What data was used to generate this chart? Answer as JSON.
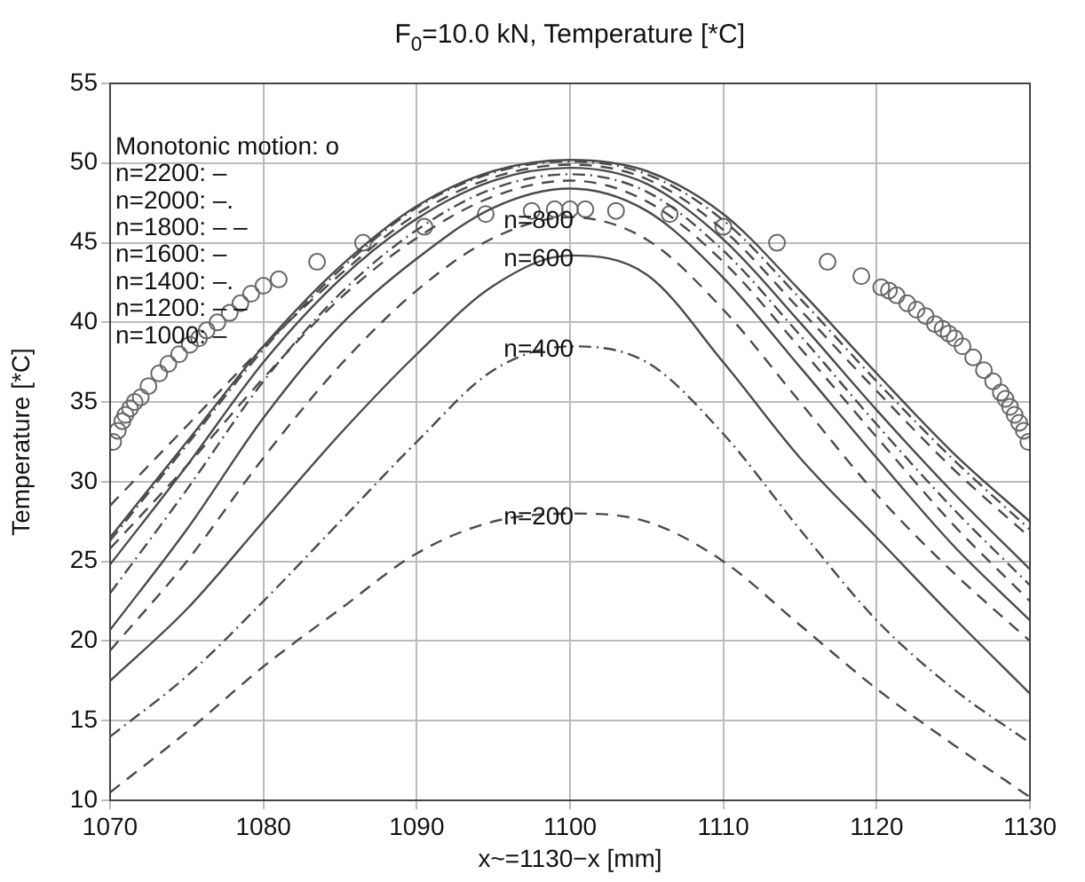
{
  "chart_data": {
    "type": "line",
    "title": "F$_{0}$=10.0 kN, Temperature [*C]",
    "xlabel": "x~=1130−x [mm]",
    "ylabel": "Temperature [*C]",
    "x": [
      1070,
      1075,
      1080,
      1085,
      1090,
      1095,
      1100,
      1105,
      1110,
      1115,
      1120,
      1125,
      1130
    ],
    "xlim": [
      1070,
      1130
    ],
    "xticks": [
      1070,
      1080,
      1090,
      1100,
      1110,
      1120,
      1130
    ],
    "ylim": [
      10,
      55
    ],
    "yticks": [
      10,
      15,
      20,
      25,
      30,
      35,
      40,
      45,
      50,
      55
    ],
    "grid": true,
    "legend": false,
    "marker": "none",
    "series": [
      {
        "color": "#4a4a4a",
        "line_style": "solid",
        "values": [
          26.5,
          32.5,
          38.5,
          43.5,
          47.3,
          49.5,
          50.2,
          49.5,
          46.8,
          42,
          36.8,
          31.8,
          27.5
        ]
      },
      {
        "color": "#4a4a4a",
        "line_style": "dashdot",
        "values": [
          26.3,
          32.3,
          38.3,
          43.3,
          47.2,
          49.4,
          50.1,
          49.3,
          46.4,
          41.5,
          36.3,
          31.4,
          27
        ]
      },
      {
        "color": "#4a4a4a",
        "line_style": "dashed",
        "values": [
          28.5,
          33.5,
          38.5,
          43,
          46.8,
          49.1,
          49.9,
          49,
          45.8,
          40.8,
          35.7,
          30.8,
          26.5
        ]
      },
      {
        "color": "#4a4a4a",
        "line_style": "solid",
        "values": [
          24.8,
          31,
          37.5,
          42.7,
          46.5,
          48.9,
          49.7,
          48.7,
          45.2,
          40,
          34.5,
          29.3,
          24.5
        ]
      },
      {
        "color": "#4a4a4a",
        "line_style": "dashdot",
        "values": [
          23,
          29.5,
          36.3,
          41.8,
          45.8,
          48.4,
          49.3,
          48.2,
          44.5,
          39.2,
          33.6,
          28.3,
          23.5
        ]
      },
      {
        "color": "#4a4a4a",
        "line_style": "dashed",
        "values": [
          25.8,
          31,
          36.5,
          41.5,
          45.3,
          47.9,
          48.9,
          47.6,
          43.8,
          38.4,
          32.8,
          27.3,
          22.5
        ]
      },
      {
        "color": "#4a4a4a",
        "line_style": "solid",
        "values": [
          20.7,
          27,
          34,
          39.8,
          44,
          47.2,
          48.4,
          47,
          42.8,
          37.2,
          31.5,
          26,
          21.3
        ]
      },
      {
        "color": "#4a4a4a",
        "line_style": "dashed",
        "values": [
          19.4,
          25,
          31.5,
          37.3,
          42,
          45.3,
          46.6,
          45.2,
          40.8,
          35,
          29.2,
          24.3,
          20
        ]
      },
      {
        "color": "#4a4a4a",
        "line_style": "solid",
        "values": [
          17.5,
          22,
          27.5,
          33,
          38,
          42.3,
          44.2,
          43,
          37.5,
          31.5,
          26.5,
          21.5,
          16.7
        ]
      },
      {
        "color": "#4a4a4a",
        "line_style": "dashdot",
        "values": [
          14,
          17.8,
          22.5,
          27.5,
          32.5,
          37,
          38.5,
          37.5,
          33,
          27,
          21.3,
          17,
          13.6
        ]
      },
      {
        "color": "#4a4a4a",
        "line_style": "dashed",
        "values": [
          10.5,
          14.3,
          18.4,
          22,
          25.5,
          27.5,
          28,
          27.5,
          25,
          21,
          17,
          13.5,
          10.2
        ]
      },
      {
        "type": "scatter",
        "marker": "circle",
        "color": "#666666",
        "x": [
          1070.2,
          1070.5,
          1070.8,
          1071,
          1071.3,
          1071.6,
          1072,
          1072.5,
          1073.2,
          1073.8,
          1074.5,
          1075.2,
          1075.8,
          1076.3,
          1077,
          1077.8,
          1078.5,
          1079.2,
          1080,
          1081,
          1083.5,
          1086.5,
          1090.5,
          1094.5,
          1097.5,
          1099,
          1100,
          1101,
          1103,
          1106.5,
          1110,
          1113.5,
          1116.8,
          1119,
          1120.3,
          1120.8,
          1121.3,
          1122,
          1122.6,
          1123.2,
          1123.8,
          1124.3,
          1124.7,
          1125.1,
          1125.6,
          1126.3,
          1127,
          1127.6,
          1128.1,
          1128.4,
          1128.7,
          1129,
          1129.3,
          1129.6,
          1129.9
        ],
        "values": [
          32.5,
          33.2,
          33.8,
          34.2,
          34.6,
          35,
          35.3,
          36,
          36.8,
          37.4,
          38,
          38.6,
          39,
          39.5,
          40,
          40.6,
          41.2,
          41.8,
          42.3,
          42.7,
          43.8,
          45,
          46,
          46.8,
          47,
          47.1,
          47.1,
          47.1,
          47,
          46.8,
          46,
          45,
          43.8,
          42.9,
          42.2,
          42,
          41.7,
          41.2,
          40.8,
          40.4,
          39.9,
          39.6,
          39.3,
          39,
          38.5,
          37.8,
          37,
          36.3,
          35.6,
          35.2,
          34.7,
          34.2,
          33.7,
          33.2,
          32.5
        ]
      }
    ],
    "annotations": [
      "Monotonic motion: o",
      "n=2200: –",
      "n=2000: –.",
      "n=1800: – –",
      "n=1600: –",
      "n=1400: –.",
      "n=1200: – –",
      "n=1000: –",
      {
        "text": "n=800",
        "y": 46.6
      },
      {
        "text": "n=600",
        "y": 44.2
      },
      {
        "text": "n=400",
        "y": 38.5
      },
      {
        "text": "n=200",
        "y": 28
      }
    ]
  }
}
